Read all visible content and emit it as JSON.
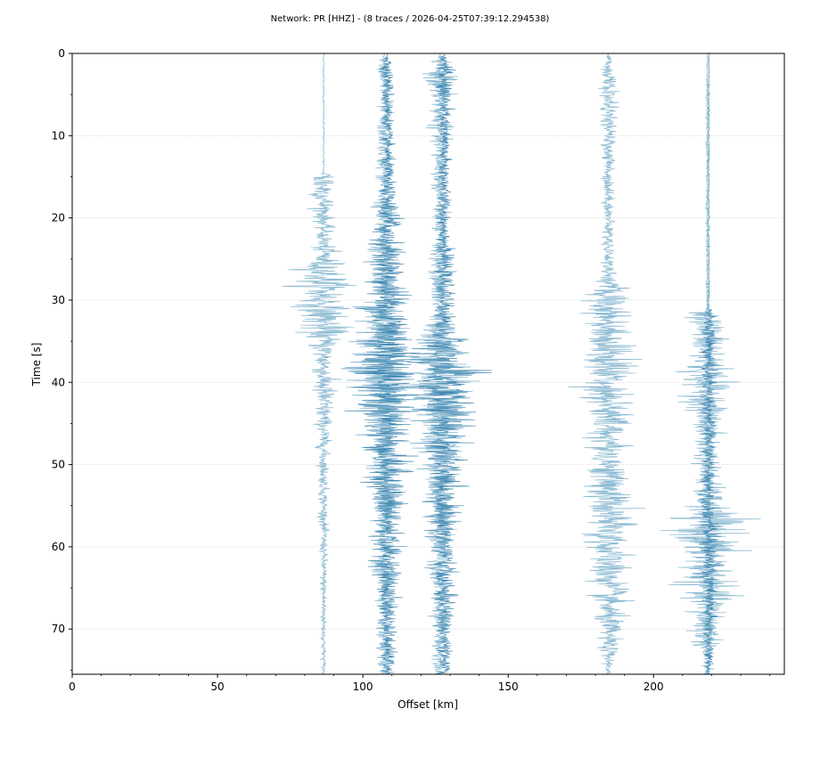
{
  "chart_data": {
    "type": "line",
    "title": "Network: PR [HHZ] - (8 traces / 2026-04-25T07:39:12.294538)",
    "xlabel": "Offset [km]",
    "ylabel": "Time [s]",
    "xlim": [
      0,
      245
    ],
    "ylim": [
      75.5,
      0
    ],
    "y_inverted": true,
    "grid": "horizontal-dotted",
    "x_ticks": [
      0,
      50,
      100,
      150,
      200
    ],
    "y_ticks": [
      0,
      10,
      20,
      30,
      40,
      50,
      60,
      70
    ],
    "colors": {
      "light": "#7fb2ce",
      "dark": "#2a7aa8",
      "grid": "#cccccc"
    },
    "series": [
      {
        "offset_km": 86.5,
        "color": "light",
        "envelope": [
          [
            0,
            0.3
          ],
          [
            14.5,
            0.3
          ],
          [
            15,
            7
          ],
          [
            18,
            4.5
          ],
          [
            22,
            3
          ],
          [
            25,
            6
          ],
          [
            26,
            9
          ],
          [
            29,
            11
          ],
          [
            31,
            9
          ],
          [
            33,
            10
          ],
          [
            35,
            6
          ],
          [
            38,
            4
          ],
          [
            41,
            5
          ],
          [
            45,
            3
          ],
          [
            50,
            2
          ],
          [
            55,
            1.8
          ],
          [
            60,
            1.5
          ],
          [
            68,
            1.1
          ],
          [
            75.5,
            0.8
          ]
        ]
      },
      {
        "offset_km": 107.5,
        "color": "light",
        "envelope": [
          [
            0,
            0
          ],
          [
            1,
            2
          ],
          [
            4,
            3
          ],
          [
            10,
            3
          ],
          [
            15,
            3.2
          ],
          [
            18,
            3.5
          ],
          [
            19,
            5
          ],
          [
            24,
            4.5
          ],
          [
            30,
            5
          ],
          [
            33,
            8
          ],
          [
            36,
            11
          ],
          [
            40,
            10
          ],
          [
            45,
            8
          ],
          [
            50,
            6
          ],
          [
            55,
            5
          ],
          [
            60,
            4
          ],
          [
            65,
            3.6
          ],
          [
            70,
            3
          ],
          [
            75.5,
            2.5
          ]
        ]
      },
      {
        "offset_km": 108.5,
        "color": "dark",
        "envelope": [
          [
            0,
            0
          ],
          [
            1,
            2
          ],
          [
            5,
            2.5
          ],
          [
            10,
            2
          ],
          [
            15,
            2.5
          ],
          [
            18,
            3
          ],
          [
            19,
            6
          ],
          [
            24,
            6
          ],
          [
            28,
            7
          ],
          [
            32,
            11
          ],
          [
            36,
            14
          ],
          [
            40,
            13
          ],
          [
            45,
            10
          ],
          [
            50,
            8
          ],
          [
            55,
            7
          ],
          [
            60,
            5.5
          ],
          [
            65,
            4.5
          ],
          [
            70,
            3.5
          ],
          [
            75.5,
            2.5
          ]
        ]
      },
      {
        "offset_km": 126.5,
        "color": "light",
        "envelope": [
          [
            0,
            0
          ],
          [
            1,
            3
          ],
          [
            3,
            6
          ],
          [
            6,
            4
          ],
          [
            10,
            3.5
          ],
          [
            15,
            3
          ],
          [
            20,
            3
          ],
          [
            25,
            4
          ],
          [
            30,
            4
          ],
          [
            33,
            5
          ],
          [
            35,
            9
          ],
          [
            38,
            12
          ],
          [
            42,
            11
          ],
          [
            46,
            8
          ],
          [
            50,
            6
          ],
          [
            55,
            5.5
          ],
          [
            60,
            4.5
          ],
          [
            65,
            3.5
          ],
          [
            70,
            3
          ],
          [
            75.5,
            2
          ]
        ]
      },
      {
        "offset_km": 128.0,
        "color": "dark",
        "envelope": [
          [
            0,
            0
          ],
          [
            1,
            2.5
          ],
          [
            3,
            4
          ],
          [
            6,
            3
          ],
          [
            10,
            2.5
          ],
          [
            15,
            2.5
          ],
          [
            20,
            2.5
          ],
          [
            25,
            3
          ],
          [
            30,
            3.5
          ],
          [
            33,
            4
          ],
          [
            36,
            10
          ],
          [
            40,
            14
          ],
          [
            43,
            12
          ],
          [
            47,
            9
          ],
          [
            50,
            7
          ],
          [
            55,
            6
          ],
          [
            60,
            5
          ],
          [
            65,
            4
          ],
          [
            70,
            3.5
          ],
          [
            75.5,
            2
          ]
        ]
      },
      {
        "offset_km": 184.5,
        "color": "light",
        "envelope": [
          [
            0,
            0
          ],
          [
            1,
            2
          ],
          [
            4,
            3.5
          ],
          [
            10,
            2.5
          ],
          [
            15,
            2.5
          ],
          [
            20,
            2
          ],
          [
            25,
            2.5
          ],
          [
            28,
            3.5
          ],
          [
            29,
            9
          ],
          [
            34,
            8
          ],
          [
            38,
            11
          ],
          [
            44,
            9
          ],
          [
            50,
            7
          ],
          [
            54,
            9
          ],
          [
            57,
            10
          ],
          [
            62,
            8
          ],
          [
            66,
            7
          ],
          [
            70,
            5
          ],
          [
            73,
            3
          ],
          [
            75.5,
            1
          ]
        ]
      },
      {
        "offset_km": 218.5,
        "color": "light",
        "envelope": [
          [
            0,
            0.3
          ],
          [
            10,
            0.5
          ],
          [
            20,
            0.5
          ],
          [
            30,
            0.5
          ],
          [
            31,
            0.5
          ],
          [
            31.5,
            6
          ],
          [
            35,
            7.5
          ],
          [
            39,
            10
          ],
          [
            43,
            7
          ],
          [
            47,
            5
          ],
          [
            52,
            5
          ],
          [
            55,
            7
          ],
          [
            57,
            15
          ],
          [
            60,
            12
          ],
          [
            64,
            10
          ],
          [
            67,
            9
          ],
          [
            70,
            7
          ],
          [
            73,
            4
          ],
          [
            75.5,
            1
          ]
        ]
      },
      {
        "offset_km": 219.0,
        "color": "dark",
        "envelope": [
          [
            0,
            0.2
          ],
          [
            10,
            0.3
          ],
          [
            20,
            0.3
          ],
          [
            30,
            0.3
          ],
          [
            31,
            0.3
          ],
          [
            31.5,
            2
          ],
          [
            35,
            3
          ],
          [
            40,
            3
          ],
          [
            45,
            2.5
          ],
          [
            50,
            2.5
          ],
          [
            55,
            3
          ],
          [
            60,
            4
          ],
          [
            65,
            3.5
          ],
          [
            70,
            2.5
          ],
          [
            75.5,
            1
          ]
        ]
      }
    ]
  }
}
